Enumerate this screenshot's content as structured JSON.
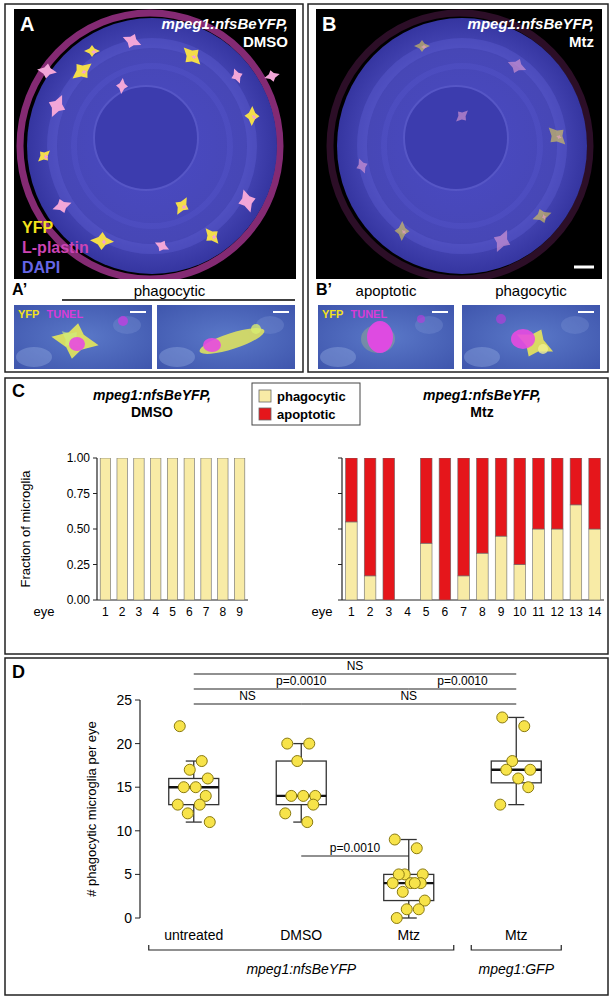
{
  "figure": {
    "images": [
      {
        "panel": "A",
        "title": "mpeg1:nfsBeYFP, DMSO",
        "channels": [
          {
            "name": "YFP",
            "color": "#f2e21c"
          },
          {
            "name": "L-plastin",
            "color": "#cc44b4"
          },
          {
            "name": "DAPI",
            "color": "#6666e6"
          }
        ]
      },
      {
        "panel": "B",
        "title": "mpeg1:nfsBeYFP, Mtz"
      }
    ],
    "inset_panels": [
      {
        "panel": "A’",
        "groups": [
          {
            "caption": "phagocytic",
            "insets": [
              {
                "channels": [
                  {
                    "name": "YFP",
                    "color": "#f2e21c"
                  },
                  {
                    "name": "TUNEL",
                    "color": "#d83bd8"
                  }
                ]
              },
              {
                "channels": []
              }
            ]
          }
        ]
      },
      {
        "panel": "B’",
        "groups": [
          {
            "caption": "apoptotic",
            "insets": [
              {
                "channels": [
                  {
                    "name": "YFP",
                    "color": "#f2e21c"
                  },
                  {
                    "name": "TUNEL",
                    "color": "#d83bd8"
                  }
                ]
              }
            ]
          },
          {
            "caption": "phagocytic",
            "insets": [
              {
                "channels": []
              }
            ]
          }
        ]
      }
    ],
    "chart_panels": [
      "C",
      "D"
    ]
  },
  "chart_data": [
    {
      "type": "bar",
      "stacked": true,
      "title": "mpeg1:nfsBeYFP, DMSO",
      "xlabel": "eye",
      "ylabel": "Fraction of microglia",
      "legend": "top",
      "categories": [
        "1",
        "2",
        "3",
        "4",
        "5",
        "6",
        "7",
        "8",
        "9"
      ],
      "series": [
        {
          "name": "phagocytic",
          "color": "#f8eba6",
          "values": [
            1,
            1,
            1,
            1,
            1,
            1,
            1,
            1,
            1
          ]
        },
        {
          "name": "apoptotic",
          "color": "#e5161b",
          "values": [
            0,
            0,
            0,
            0,
            0,
            0,
            0,
            0,
            0
          ]
        }
      ],
      "ylim": [
        0,
        1
      ],
      "yticks": [
        {
          "value": 0,
          "label": "0.00"
        },
        {
          "value": 0.25,
          "label": "0.25"
        },
        {
          "value": 0.5,
          "label": "0.50"
        },
        {
          "value": 0.75,
          "label": "0.75"
        },
        {
          "value": 1,
          "label": "1.00"
        }
      ]
    },
    {
      "type": "bar",
      "stacked": true,
      "title": "mpeg1:nfsBeYFP, Mtz",
      "xlabel": "eye",
      "tick_labels": "x",
      "categories": [
        "1",
        "2",
        "3",
        "4",
        "5",
        "6",
        "7",
        "8",
        "9",
        "10",
        "11",
        "12",
        "13",
        "14"
      ],
      "series": [
        {
          "color": "#f8eba6",
          "values": [
            0.55,
            0.17,
            0,
            0,
            0.4,
            0,
            0.17,
            0.33,
            0.45,
            0.25,
            0.5,
            0.5,
            0.67,
            0.5
          ]
        },
        {
          "color": "#e5161b",
          "values": [
            0.45,
            0.83,
            1,
            0,
            0.6,
            1,
            0.83,
            0.67,
            0.55,
            0.75,
            0.5,
            0.5,
            0.33,
            0.5
          ]
        }
      ],
      "ylim": [
        0,
        1
      ],
      "yticks": [
        0,
        0.25,
        0.5,
        0.75,
        1
      ]
    },
    {
      "type": "box",
      "ylabel": "# phagocytic microglia per eye",
      "categories": [
        "untreated",
        "DMSO",
        "Mtz",
        "Mtz"
      ],
      "category_groups": [
        {
          "label": "mpeg1:nfsBeYFP",
          "from": 0,
          "to": 2
        },
        {
          "label": "mpeg1:GFP",
          "from": 3,
          "to": 3
        }
      ],
      "color": "#f7e34a",
      "boxes": [
        {
          "min": 11,
          "q1": 13,
          "median": 15,
          "q3": 16,
          "max": 18
        },
        {
          "min": 11,
          "q1": 13,
          "median": 14,
          "q3": 18,
          "max": 20
        },
        {
          "min": 0,
          "q1": 2,
          "median": 4,
          "q3": 5,
          "max": 9
        },
        {
          "min": 13,
          "q1": 15.5,
          "median": 17,
          "q3": 18,
          "max": 23
        }
      ],
      "points": [
        [
          22,
          18,
          17,
          16,
          15,
          15,
          14,
          13,
          13,
          12,
          11
        ],
        [
          20,
          20,
          18,
          14,
          14,
          14,
          13,
          12,
          11
        ],
        [
          9,
          8,
          5,
          5,
          5,
          4,
          4,
          4,
          4,
          3,
          2,
          1,
          1,
          0
        ],
        [
          23,
          22,
          18,
          17,
          17,
          16,
          15,
          13
        ]
      ],
      "comparisons": [
        {
          "from": 0,
          "to": 3,
          "label": "NS"
        },
        {
          "from": 0,
          "to": 2,
          "label": "p=0.0010"
        },
        {
          "from": 2,
          "to": 3,
          "label": "p=0.0010"
        },
        {
          "from": 0,
          "to": 1,
          "label": "NS"
        },
        {
          "from": 1,
          "to": 3,
          "label": "NS"
        },
        {
          "from": 1,
          "to": 2,
          "label": "p=0.0010"
        }
      ],
      "ylim": [
        0,
        25
      ],
      "yticks": [
        0,
        5,
        10,
        15,
        20,
        25
      ]
    }
  ]
}
